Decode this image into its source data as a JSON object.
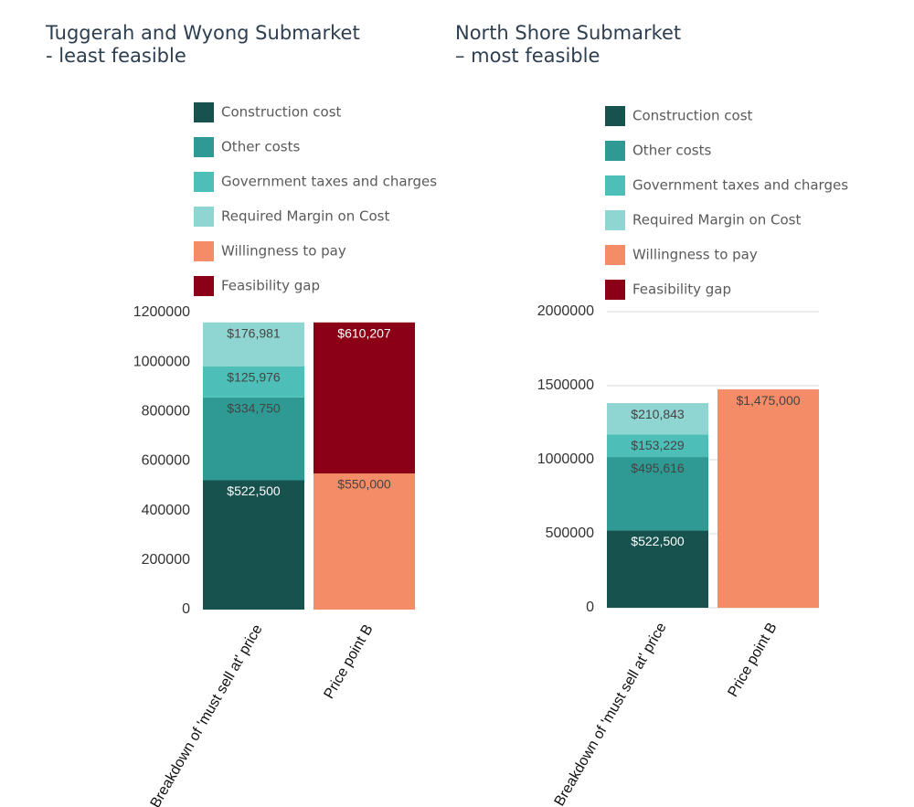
{
  "chart_data": [
    {
      "type": "stacked_bar",
      "title": [
        "Tuggerah and Wyong Submarket",
        "- least feasible"
      ],
      "categories": [
        "Breakdown of 'must sell at' price",
        "Price point B"
      ],
      "series": [
        {
          "name": "Construction cost",
          "color": "#17524f",
          "values": [
            522500,
            null
          ],
          "value_labels": [
            "$522,500",
            null
          ]
        },
        {
          "name": "Other costs",
          "color": "#2e9a93",
          "values": [
            334750,
            null
          ],
          "value_labels": [
            "$334,750",
            null
          ]
        },
        {
          "name": "Government taxes and charges",
          "color": "#4dbfb8",
          "values": [
            125976,
            null
          ],
          "value_labels": [
            "$125,976",
            null
          ]
        },
        {
          "name": "Required Margin on Cost",
          "color": "#8fd5d1",
          "values": [
            176981,
            null
          ],
          "value_labels": [
            "$176,981",
            null
          ]
        },
        {
          "name": "Willingness to pay",
          "color": "#f48c68",
          "values": [
            null,
            550000
          ],
          "value_labels": [
            null,
            "$550,000"
          ]
        },
        {
          "name": "Feasibility gap",
          "color": "#8b0016",
          "values": [
            null,
            610207
          ],
          "value_labels": [
            null,
            "$610,207"
          ]
        }
      ],
      "ylim": [
        0,
        1200000
      ],
      "yticks": [
        0,
        200000,
        400000,
        600000,
        800000,
        1000000,
        1200000
      ],
      "grid": false
    },
    {
      "type": "stacked_bar",
      "title": [
        "North Shore Submarket",
        "– most feasible"
      ],
      "categories": [
        "Breakdown of 'must sell at' price",
        "Price point B"
      ],
      "series": [
        {
          "name": "Construction cost",
          "color": "#17524f",
          "values": [
            522500,
            null
          ],
          "value_labels": [
            "$522,500",
            null
          ]
        },
        {
          "name": "Other costs",
          "color": "#2e9a93",
          "values": [
            495616,
            null
          ],
          "value_labels": [
            "$495,616",
            null
          ]
        },
        {
          "name": "Government taxes and charges",
          "color": "#4dbfb8",
          "values": [
            153229,
            null
          ],
          "value_labels": [
            "$153,229",
            null
          ]
        },
        {
          "name": "Required Margin on Cost",
          "color": "#8fd5d1",
          "values": [
            210843,
            null
          ],
          "value_labels": [
            "$210,843",
            null
          ]
        },
        {
          "name": "Willingness to pay",
          "color": "#f48c68",
          "values": [
            null,
            1475000
          ],
          "value_labels": [
            null,
            "$1,475,000"
          ]
        },
        {
          "name": "Feasibility gap",
          "color": "#8b0016",
          "values": [
            null,
            null
          ],
          "value_labels": [
            null,
            null
          ]
        }
      ],
      "ylim": [
        0,
        2000000
      ],
      "yticks": [
        0,
        500000,
        1000000,
        1500000,
        2000000
      ],
      "grid": true
    }
  ]
}
